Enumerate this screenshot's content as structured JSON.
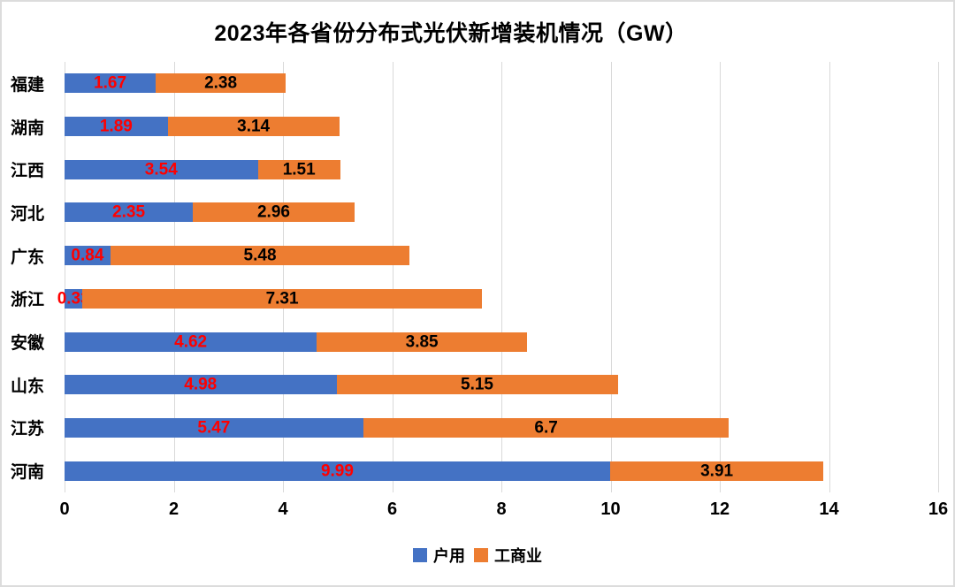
{
  "chart_data": {
    "type": "bar",
    "orientation": "horizontal",
    "stacked": true,
    "title": "2023年各省份分布式光伏新增装机情况（GW）",
    "categories": [
      "福建",
      "湖南",
      "江西",
      "河北",
      "广东",
      "浙江",
      "安徽",
      "山东",
      "江苏",
      "河南"
    ],
    "series": [
      {
        "name": "户用",
        "color": "#4472C4",
        "label_color": "#FF0000",
        "values": [
          1.67,
          1.89,
          3.54,
          2.35,
          0.84,
          0.33,
          4.62,
          4.98,
          5.47,
          9.99
        ]
      },
      {
        "name": "工商业",
        "color": "#ED7D31",
        "label_color": "#000000",
        "values": [
          2.38,
          3.14,
          1.51,
          2.96,
          5.48,
          7.31,
          3.85,
          5.15,
          6.7,
          3.91
        ]
      }
    ],
    "xlabel": "",
    "ylabel": "",
    "xlim": [
      0,
      16
    ],
    "xticks": [
      0,
      2,
      4,
      6,
      8,
      10,
      12,
      14,
      16
    ],
    "grid": true,
    "gridline_color": "#D9D9D9",
    "legend_position": "bottom",
    "background": "#FFFFFF"
  }
}
